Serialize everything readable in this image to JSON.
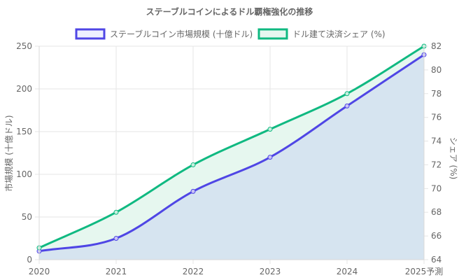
{
  "chart_data": {
    "type": "line",
    "title": "ステーブルコインによるドル覇権強化の推移",
    "categories": [
      "2020",
      "2021",
      "2022",
      "2023",
      "2024",
      "2025予測"
    ],
    "series": [
      {
        "name": "ステーブルコイン市場規模 (十億ドル)",
        "values": [
          10,
          25,
          80,
          120,
          180,
          240
        ],
        "axis": "left",
        "color": "#4f46e5",
        "fill": "#d6e4f0",
        "fill_mode": "origin"
      },
      {
        "name": "ドル建て決済シェア (%)",
        "values": [
          65,
          68,
          72,
          75,
          78,
          82
        ],
        "axis": "right",
        "color": "#10b981",
        "fill": "#e6f7ef",
        "fill_mode": "to-previous"
      }
    ],
    "y_left": {
      "label": "市場規模 (十億ドル)",
      "range": [
        0,
        250
      ],
      "ticks": [
        "0",
        "50",
        "100",
        "150",
        "200",
        "250"
      ]
    },
    "y_right": {
      "label": "シェア (%)",
      "range": [
        64,
        82
      ],
      "ticks": [
        "64",
        "66",
        "68",
        "70",
        "72",
        "74",
        "76",
        "78",
        "80",
        "82"
      ]
    },
    "grid": true,
    "legend_position": "top"
  }
}
